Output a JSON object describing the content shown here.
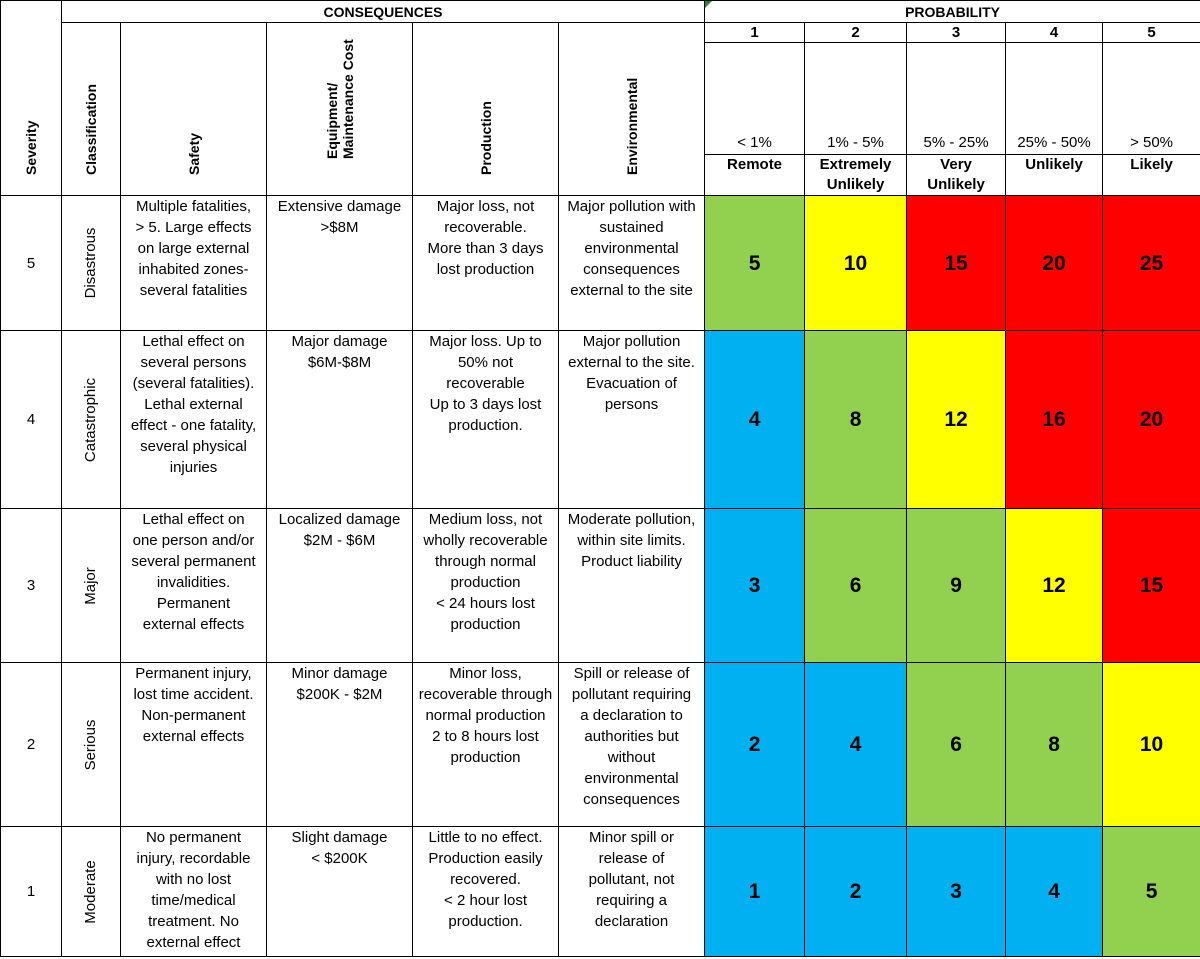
{
  "headers": {
    "severity": "Severity",
    "consequences": "CONSEQUENCES",
    "probability": "PROBABILITY",
    "classification": "Classification",
    "safety": "Safety",
    "equipment_line1": "Equipment/",
    "equipment_line2": "Maintenance Cost",
    "production": "Production",
    "environmental": "Environmental"
  },
  "probability_levels": [
    {
      "num": "1",
      "range": "< 1%",
      "name": "Remote"
    },
    {
      "num": "2",
      "range": "1% - 5%",
      "name": "Extremely\nUnlikely"
    },
    {
      "num": "3",
      "range": "5% - 25%",
      "name": "Very\nUnlikely"
    },
    {
      "num": "4",
      "range": "25% - 50%",
      "name": "Unlikely"
    },
    {
      "num": "5",
      "range": "> 50%",
      "name": "Likely"
    }
  ],
  "colors": {
    "blue": "#00b0f0",
    "green": "#92d050",
    "yellow": "#ffff00",
    "red": "#ff0000"
  },
  "rows": [
    {
      "severity": "5",
      "classification": "Disastrous",
      "safety": "Multiple fatalities,\n> 5.  Large effects\non large external\ninhabited zones-\nseveral fatalities",
      "equipment": "Extensive damage\n>$8M",
      "production": "Major loss, not\nrecoverable.\nMore than 3 days\nlost production",
      "environmental": "Major pollution with\nsustained\nenvironmental\nconsequences\nexternal to the site",
      "risk": [
        {
          "value": "5",
          "color": "green"
        },
        {
          "value": "10",
          "color": "yellow"
        },
        {
          "value": "15",
          "color": "red"
        },
        {
          "value": "20",
          "color": "red"
        },
        {
          "value": "25",
          "color": "red"
        }
      ]
    },
    {
      "severity": "4",
      "classification": "Catastrophic",
      "safety": "Lethal effect on\nseveral persons\n(several fatalities).\nLethal external\neffect - one fatality,\nseveral physical\ninjuries",
      "equipment": "Major damage\n$6M-$8M",
      "production": "Major loss.  Up to\n50% not\nrecoverable\nUp to 3 days lost\nproduction.",
      "environmental": "Major pollution\nexternal to the site.\nEvacuation of\npersons",
      "risk": [
        {
          "value": "4",
          "color": "blue"
        },
        {
          "value": "8",
          "color": "green"
        },
        {
          "value": "12",
          "color": "yellow"
        },
        {
          "value": "16",
          "color": "red"
        },
        {
          "value": "20",
          "color": "red"
        }
      ]
    },
    {
      "severity": "3",
      "classification": "Major",
      "safety": "Lethal effect on\none person and/or\nseveral permanent\ninvalidities.\nPermanent\nexternal effects",
      "equipment": "Localized damage\n$2M - $6M",
      "production": "Medium loss, not\nwholly recoverable\nthrough normal\nproduction\n< 24 hours lost\nproduction",
      "environmental": "Moderate pollution,\nwithin site limits.\nProduct liability",
      "risk": [
        {
          "value": "3",
          "color": "blue"
        },
        {
          "value": "6",
          "color": "green"
        },
        {
          "value": "9",
          "color": "green"
        },
        {
          "value": "12",
          "color": "yellow"
        },
        {
          "value": "15",
          "color": "red"
        }
      ]
    },
    {
      "severity": "2",
      "classification": "Serious",
      "safety": "Permanent injury,\nlost time accident.\nNon-permanent\nexternal effects",
      "equipment": "Minor damage\n$200K - $2M",
      "production": "Minor loss,\nrecoverable through\nnormal production\n2 to 8 hours lost\nproduction",
      "environmental": "Spill or release of\npollutant requiring\na declaration to\nauthorities but\nwithout\nenvironmental\nconsequences",
      "risk": [
        {
          "value": "2",
          "color": "blue"
        },
        {
          "value": "4",
          "color": "blue"
        },
        {
          "value": "6",
          "color": "green"
        },
        {
          "value": "8",
          "color": "green"
        },
        {
          "value": "10",
          "color": "yellow"
        }
      ]
    },
    {
      "severity": "1",
      "classification": "Moderate",
      "safety": "No permanent\ninjury, recordable\nwith no lost\ntime/medical\ntreatment. No\nexternal effect",
      "equipment": "Slight damage\n< $200K",
      "production": "Little to no effect.\nProduction easily\nrecovered.\n< 2 hour lost\nproduction.",
      "environmental": "Minor spill or\nrelease of\npollutant, not\nrequiring a\ndeclaration",
      "risk": [
        {
          "value": "1",
          "color": "blue"
        },
        {
          "value": "2",
          "color": "blue"
        },
        {
          "value": "3",
          "color": "blue"
        },
        {
          "value": "4",
          "color": "blue"
        },
        {
          "value": "5",
          "color": "green"
        }
      ]
    }
  ]
}
